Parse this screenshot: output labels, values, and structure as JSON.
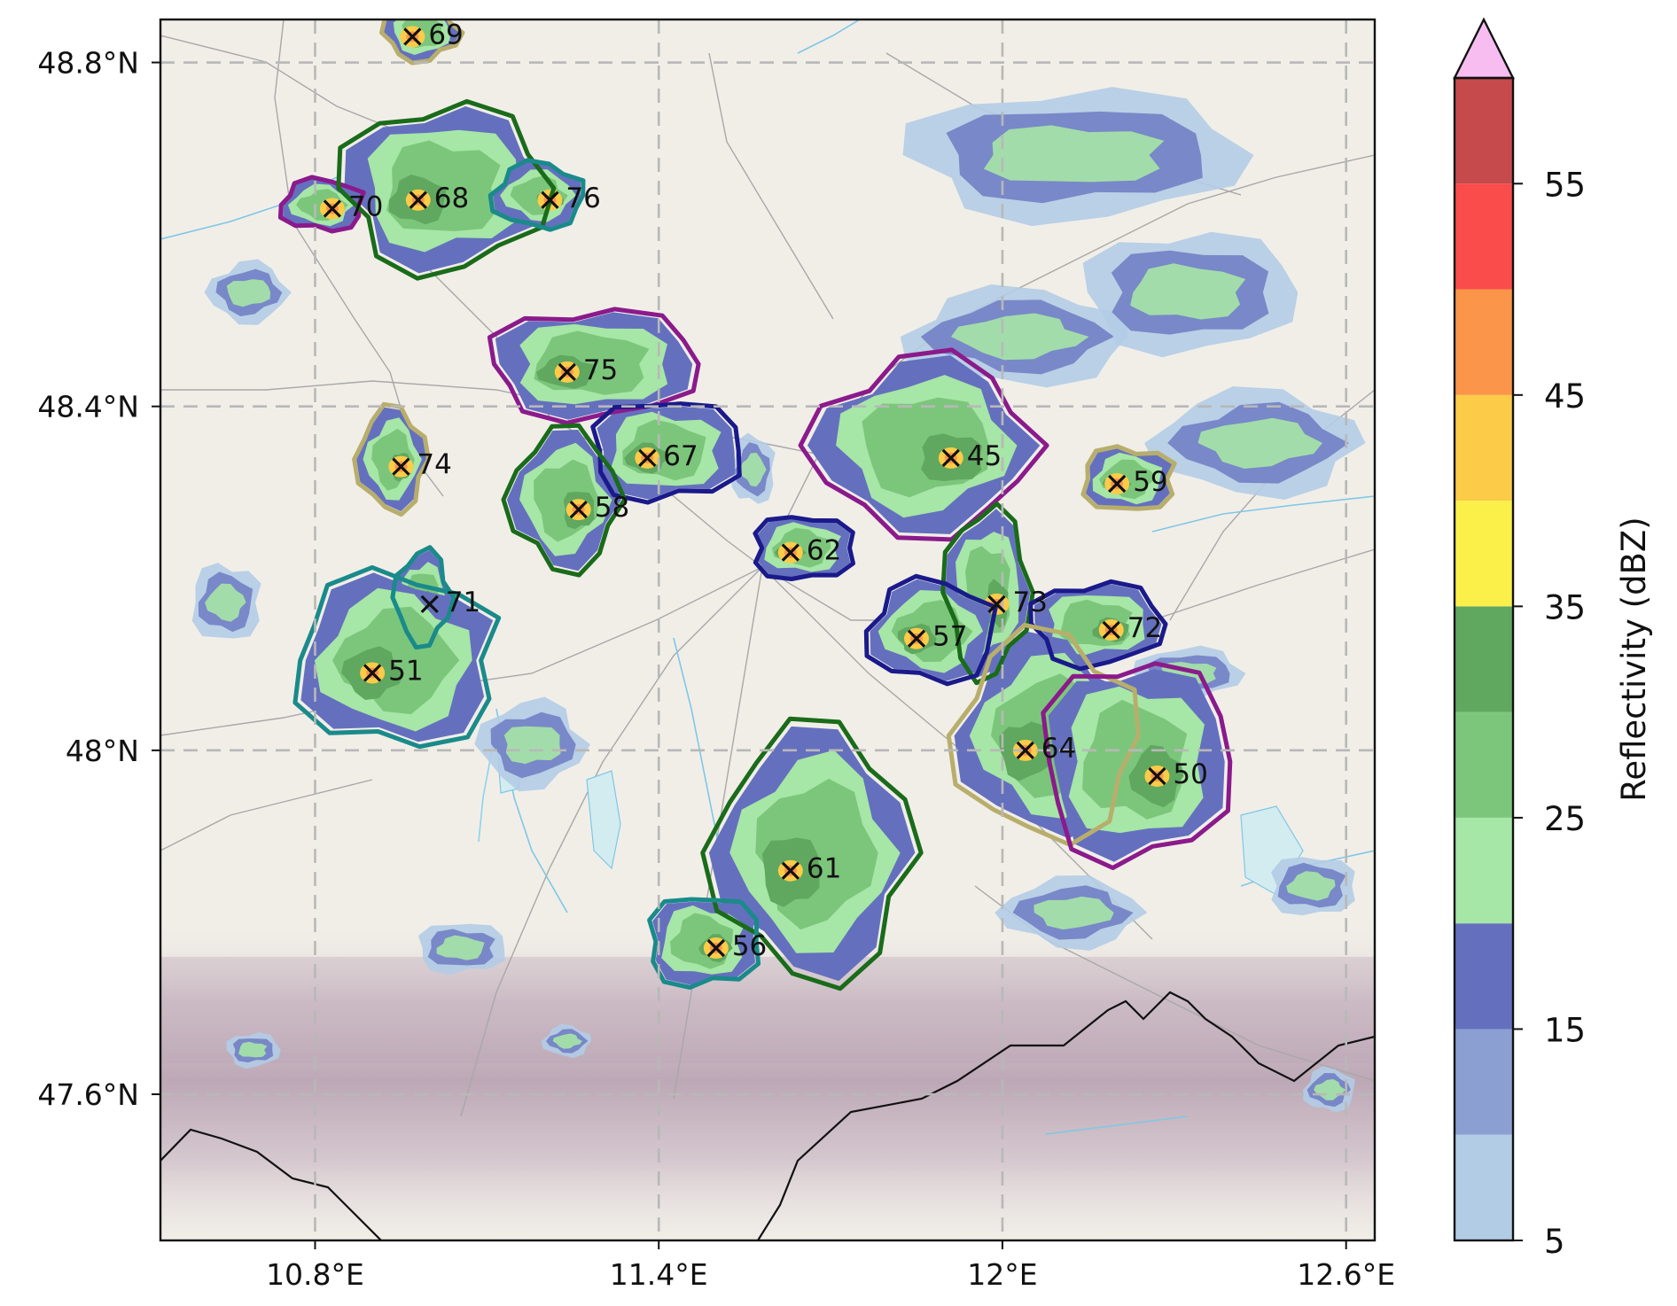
{
  "map": {
    "lon_range": [
      10.53,
      12.65
    ],
    "lat_range": [
      47.43,
      48.85
    ],
    "x_ticks": [
      {
        "value": 10.8,
        "label": "10.8°E"
      },
      {
        "value": 11.4,
        "label": "11.4°E"
      },
      {
        "value": 12.0,
        "label": "12°E"
      },
      {
        "value": 12.6,
        "label": "12.6°E"
      }
    ],
    "y_ticks": [
      {
        "value": 48.8,
        "label": "48.8°N"
      },
      {
        "value": 48.4,
        "label": "48.4°N"
      },
      {
        "value": 48.0,
        "label": "48°N"
      },
      {
        "value": 47.6,
        "label": "47.6°N"
      }
    ],
    "grid": true,
    "storms": [
      {
        "id": "69",
        "lon": 10.97,
        "lat": 48.83,
        "color": "#b8ae6c"
      },
      {
        "id": "70",
        "lon": 10.83,
        "lat": 48.63,
        "color": "#8b1a8b"
      },
      {
        "id": "68",
        "lon": 10.98,
        "lat": 48.64,
        "color": "#1a6b1a"
      },
      {
        "id": "76",
        "lon": 11.21,
        "lat": 48.64,
        "color": "#1a8a8a"
      },
      {
        "id": "75",
        "lon": 11.24,
        "lat": 48.44,
        "color": "#8b1a8b"
      },
      {
        "id": "74",
        "lon": 10.95,
        "lat": 48.33,
        "color": "#b8ae6c"
      },
      {
        "id": "67",
        "lon": 11.38,
        "lat": 48.34,
        "color": "#1a1a8b"
      },
      {
        "id": "58",
        "lon": 11.26,
        "lat": 48.28,
        "color": "#1a6b1a"
      },
      {
        "id": "62",
        "lon": 11.63,
        "lat": 48.23,
        "color": "#1a1a8b"
      },
      {
        "id": "45",
        "lon": 11.91,
        "lat": 48.34,
        "color": "#8b1a8b"
      },
      {
        "id": "59",
        "lon": 12.2,
        "lat": 48.31,
        "color": "#b8ae6c"
      },
      {
        "id": "71",
        "lon": 11.0,
        "lat": 48.17,
        "color": "#1a8a8a"
      },
      {
        "id": "51",
        "lon": 10.9,
        "lat": 48.09,
        "color": "#1a8a8a"
      },
      {
        "id": "73",
        "lon": 11.99,
        "lat": 48.17,
        "color": "#1a6b1a"
      },
      {
        "id": "57",
        "lon": 11.85,
        "lat": 48.13,
        "color": "#1a1a8b"
      },
      {
        "id": "72",
        "lon": 12.19,
        "lat": 48.14,
        "color": "#1a1a8b"
      },
      {
        "id": "64",
        "lon": 12.04,
        "lat": 48.0,
        "color": "#b8ae6c"
      },
      {
        "id": "50",
        "lon": 12.27,
        "lat": 47.97,
        "color": "#8b1a8b"
      },
      {
        "id": "61",
        "lon": 11.63,
        "lat": 47.86,
        "color": "#1a6b1a"
      },
      {
        "id": "56",
        "lon": 11.5,
        "lat": 47.77,
        "color": "#1a8a8a"
      }
    ]
  },
  "colorbar": {
    "label": "Reflectivity (dBZ)",
    "levels": [
      5,
      10,
      15,
      20,
      25,
      30,
      35,
      40,
      45,
      50,
      55,
      60
    ],
    "colors": [
      "#b3cce6",
      "#8c9fd2",
      "#6470be",
      "#a6e6a6",
      "#7cc67c",
      "#60a760",
      "#fbf049",
      "#fccb48",
      "#fb9549",
      "#fa4c4b",
      "#c64a4c"
    ],
    "extend_color": "#f7bdf1",
    "tick_values": [
      5,
      15,
      25,
      35,
      45,
      55
    ],
    "tick_labels": [
      "5",
      "15",
      "25",
      "35",
      "45",
      "55"
    ]
  }
}
